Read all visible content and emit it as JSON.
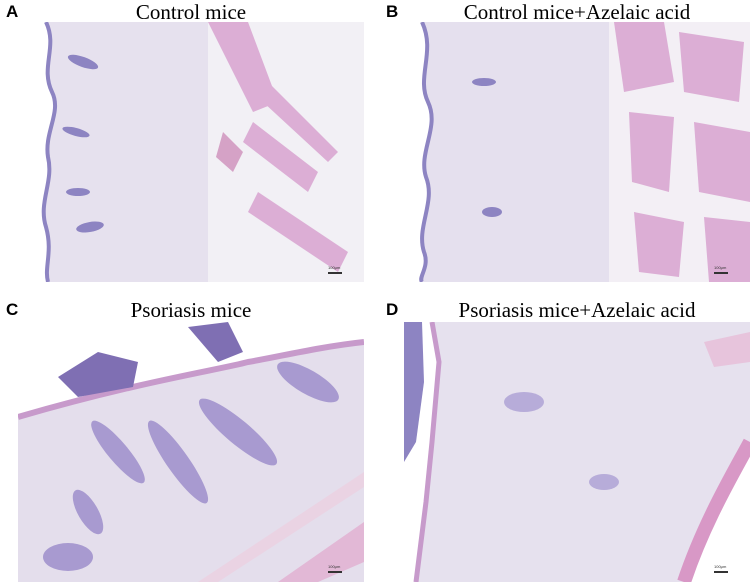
{
  "panels": [
    {
      "letter": "A",
      "title": "Control mice",
      "scale": "100μm"
    },
    {
      "letter": "B",
      "title": "Control mice+Azelaic acid",
      "scale": "100μm"
    },
    {
      "letter": "C",
      "title": "Psoriasis mice",
      "scale": "100μm"
    },
    {
      "letter": "D",
      "title": "Psoriasis mice+Azelaic acid",
      "scale": "100μm"
    }
  ],
  "colors": {
    "background_tissue": "#e6e1ee",
    "epidermis": "#8d84c2",
    "muscle": "#dcaed5",
    "dermis_light": "#efedf4",
    "nuclei": "#6f6aa8"
  }
}
